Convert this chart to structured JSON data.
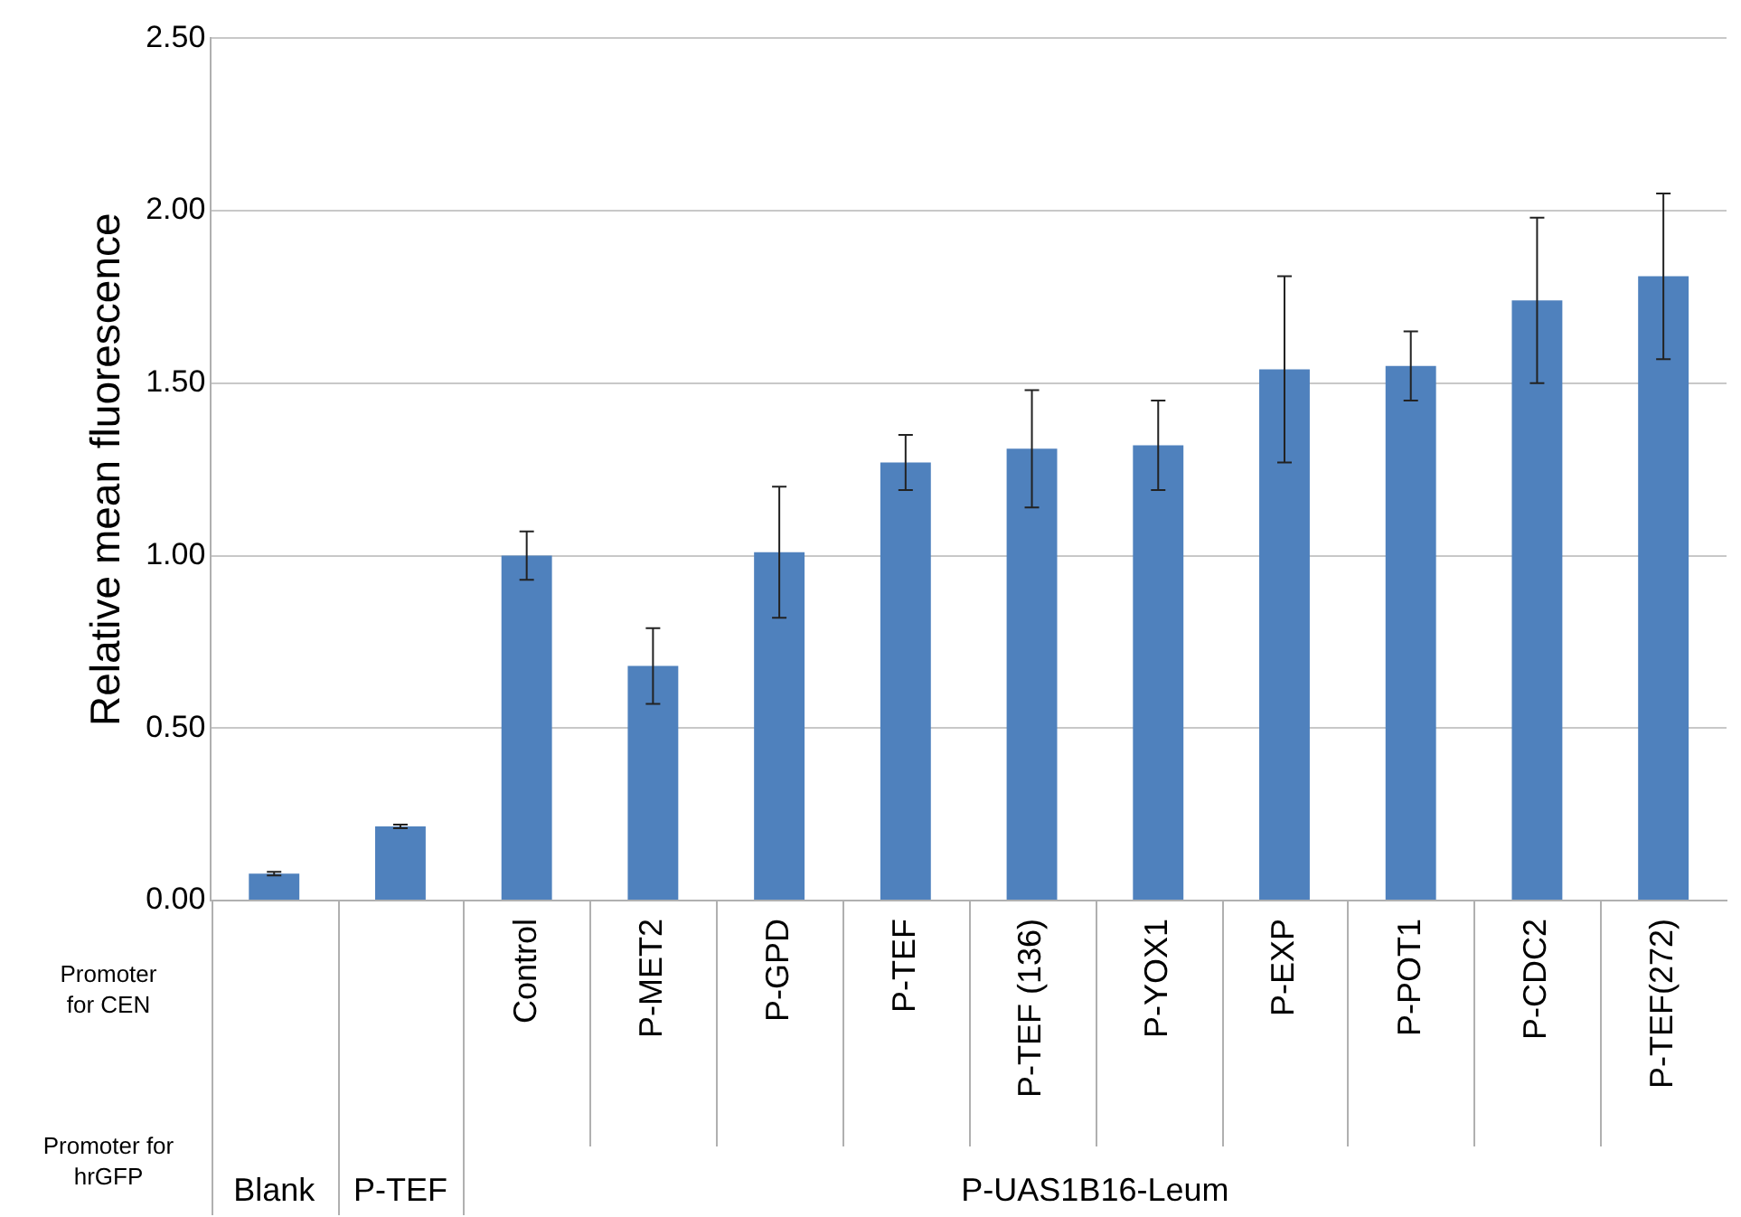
{
  "chart_data": {
    "type": "bar",
    "ylabel": "Relative mean fluorescence",
    "categories": [
      null,
      null,
      "Control",
      "P-MET2",
      "P-GPD",
      "P-TEF",
      "P-TEF (136)",
      "P-YOX1",
      "P-EXP",
      "P-POT1",
      "P-CDC2",
      "P-TEF(272)"
    ],
    "values": [
      0.078,
      0.215,
      1.0,
      0.68,
      1.01,
      1.27,
      1.31,
      1.32,
      1.54,
      1.55,
      1.74,
      1.81
    ],
    "errors": [
      0.005,
      0.005,
      0.07,
      0.11,
      0.19,
      0.08,
      0.17,
      0.13,
      0.27,
      0.1,
      0.24,
      0.24
    ],
    "color": "#4f81bd",
    "ylim": [
      0,
      2.5
    ],
    "yticks": [
      {
        "value": 0,
        "label": "0.00"
      },
      {
        "value": 0.5,
        "label": "0.50"
      },
      {
        "value": 1,
        "label": "1.00"
      },
      {
        "value": 1.5,
        "label": "1.50"
      },
      {
        "value": 2,
        "label": "2.00"
      },
      {
        "value": 2.5,
        "label": "2.50"
      }
    ],
    "grid": "y",
    "annotations": [
      "Promoter\nfor CEN",
      "Promoter for\nhrGFP",
      "Blank",
      "P-TEF",
      "P-UAS1B16-Leum"
    ]
  }
}
